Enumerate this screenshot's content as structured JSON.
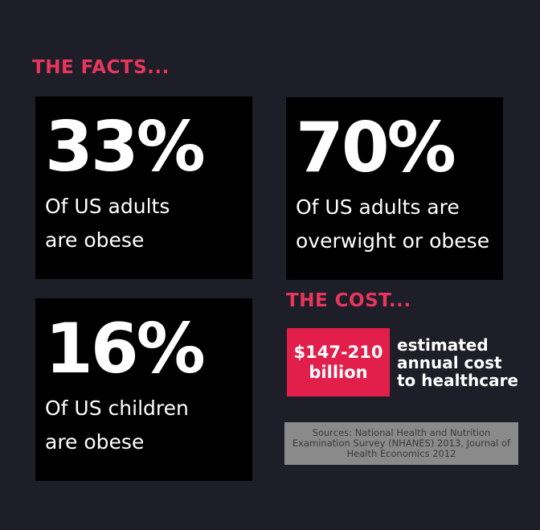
{
  "facts_heading": "THE FACTS...",
  "facts": [
    {
      "stat": "33%",
      "lines": [
        "Of US adults",
        "are obese"
      ]
    },
    {
      "stat": "70%",
      "lines": [
        "Of US adults are",
        "overwight or obese"
      ]
    },
    {
      "stat": "16%",
      "lines": [
        "Of US children",
        "are obese"
      ]
    }
  ],
  "cost_heading": "THE COST...",
  "cost": {
    "amount_lines": [
      "$147-210",
      "billion"
    ],
    "description_lines": [
      "estimated",
      "annual cost",
      "to healthcare"
    ]
  },
  "sources": "Sources: National Health and Nutrition Examination Survey (NHANES) 2013, Journal of Health Economics 2012"
}
